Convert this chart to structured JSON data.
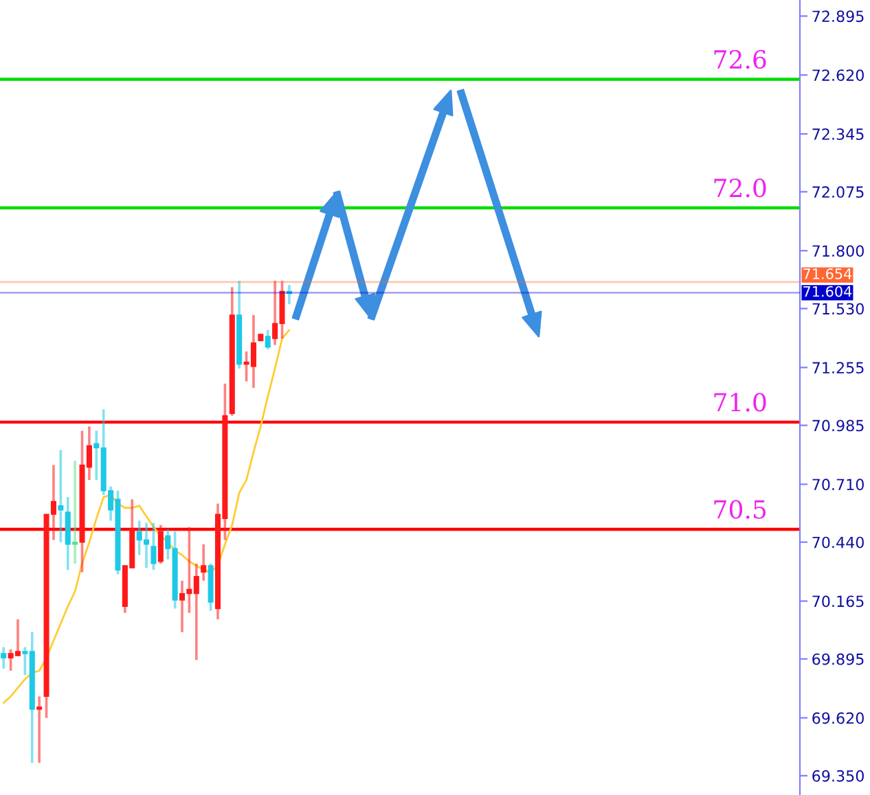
{
  "chart_data": {
    "type": "candlestick",
    "categories": [
      null,
      null,
      null,
      null,
      null,
      null,
      null,
      null,
      null,
      null,
      null,
      null,
      null,
      null,
      null,
      null,
      null,
      null,
      null,
      null,
      null,
      null,
      null,
      null,
      null,
      null,
      null,
      null,
      null,
      null,
      null,
      null,
      null,
      null,
      null,
      null,
      null,
      null,
      null,
      null,
      null,
      null,
      null,
      null,
      null,
      null,
      null,
      null,
      null,
      null,
      null,
      null,
      null,
      null,
      null,
      null,
      null,
      null,
      null,
      null,
      null,
      null,
      null,
      null,
      null,
      null,
      null,
      null,
      null,
      null,
      null,
      null,
      null,
      null,
      null,
      null,
      null,
      null,
      null,
      null,
      null,
      null,
      null,
      null,
      null,
      null,
      null,
      null,
      null,
      null,
      null,
      null,
      null,
      null,
      null,
      null,
      null,
      null,
      null,
      null,
      null,
      null,
      null,
      null,
      null,
      null,
      null,
      null,
      null,
      null,
      null,
      null
    ],
    "series": [
      {
        "ohlc": [
          [
            69.92,
            69.95,
            69.85,
            69.9
          ],
          [
            69.9,
            69.94,
            69.84,
            69.92
          ],
          [
            69.91,
            70.08,
            69.91,
            69.93
          ],
          [
            69.93,
            69.95,
            69.82,
            69.92
          ],
          [
            69.93,
            70.02,
            69.41,
            69.66
          ],
          [
            69.66,
            69.72,
            69.41,
            69.67
          ],
          [
            69.72,
            70.57,
            69.62,
            70.57
          ],
          [
            70.57,
            70.8,
            70.45,
            70.63
          ],
          [
            70.61,
            70.87,
            70.44,
            70.59
          ],
          [
            70.58,
            70.65,
            70.31,
            70.43
          ],
          [
            70.44,
            70.82,
            70.34,
            70.43
          ],
          [
            70.44,
            70.96,
            70.3,
            70.8
          ],
          [
            70.79,
            70.98,
            70.73,
            70.89
          ],
          [
            70.9,
            70.96,
            70.73,
            70.88
          ],
          [
            70.88,
            71.06,
            70.66,
            70.68
          ],
          [
            70.68,
            70.7,
            70.54,
            70.59
          ],
          [
            70.64,
            70.68,
            70.29,
            70.31
          ],
          [
            70.14,
            70.33,
            70.11,
            70.33
          ],
          [
            70.32,
            70.64,
            70.32,
            70.5
          ],
          [
            70.49,
            70.54,
            70.38,
            70.45
          ],
          [
            70.45,
            70.53,
            70.32,
            70.43
          ],
          [
            70.42,
            70.53,
            70.31,
            70.34
          ],
          [
            70.35,
            70.52,
            70.34,
            70.49
          ],
          [
            70.47,
            70.5,
            70.36,
            70.41
          ],
          [
            70.41,
            70.49,
            70.13,
            70.17
          ],
          [
            70.17,
            70.26,
            70.02,
            70.2
          ],
          [
            70.2,
            70.51,
            70.11,
            70.22
          ],
          [
            70.2,
            70.34,
            69.89,
            70.28
          ],
          [
            70.3,
            70.43,
            70.26,
            70.33
          ],
          [
            70.33,
            70.34,
            70.12,
            70.16
          ],
          [
            70.13,
            70.62,
            70.08,
            70.57
          ],
          [
            70.55,
            71.18,
            70.45,
            71.03
          ],
          [
            71.04,
            71.63,
            71.03,
            71.5
          ],
          [
            71.5,
            71.66,
            71.25,
            71.27
          ],
          [
            71.27,
            71.33,
            71.19,
            71.28
          ],
          [
            71.26,
            71.5,
            71.16,
            71.37
          ],
          [
            71.38,
            71.41,
            71.38,
            71.41
          ],
          [
            71.4,
            71.43,
            71.34,
            71.35
          ],
          [
            71.39,
            71.66,
            71.36,
            71.46
          ],
          [
            71.46,
            71.66,
            71.39,
            71.61
          ],
          [
            71.61,
            71.64,
            71.55,
            71.6
          ],
          null,
          null,
          null,
          null,
          null,
          null,
          null,
          null,
          null,
          null,
          null,
          null,
          null,
          null,
          null,
          null,
          null,
          null,
          null,
          null,
          null,
          null,
          null,
          null,
          null,
          null,
          null,
          null,
          null,
          null,
          null,
          null,
          null,
          null,
          null,
          null,
          null,
          null,
          null,
          null,
          null,
          null,
          null,
          null,
          null,
          null,
          null,
          null,
          null,
          null,
          null,
          null,
          null,
          null,
          null,
          null,
          null,
          null,
          null,
          null,
          null,
          null,
          null,
          null,
          null,
          null,
          null,
          null,
          null,
          null,
          null
        ],
        "colors": [
          "#1ec8e6",
          "#ff1a1a",
          "#ff1a1a",
          "#1ec8e6",
          "#1ec8e6",
          "#ff1a1a",
          "#ff1a1a",
          "#ff1a1a",
          "#1ec8e6",
          "#1ec8e6",
          "#5ee08a",
          "#ff1a1a",
          "#ff1a1a",
          "#1ec8e6",
          "#1ec8e6",
          "#1ec8e6",
          "#1ec8e6",
          "#ff1a1a",
          "#ff1a1a",
          "#1ec8e6",
          "#1ec8e6",
          "#1ec8e6",
          "#ff1a1a",
          "#1ec8e6",
          "#1ec8e6",
          "#ff1a1a",
          "#ff1a1a",
          "#ff1a1a",
          "#ff1a1a",
          "#1ec8e6",
          "#ff1a1a",
          "#ff1a1a",
          "#ff1a1a",
          "#1ec8e6",
          "#ff1a1a",
          "#ff1a1a",
          "#ff1a1a",
          "#1ec8e6",
          "#ff1a1a",
          "#ff1a1a",
          "#1ec8e6",
          null,
          null,
          null,
          null,
          null,
          null,
          null,
          null,
          null,
          null,
          null,
          null,
          null,
          null,
          null,
          null,
          null,
          null,
          null,
          null,
          null,
          null,
          null,
          null,
          null,
          null,
          null,
          null,
          null,
          null,
          null,
          null,
          null,
          null,
          null,
          null,
          null,
          null,
          null,
          null,
          null,
          null,
          null,
          null,
          null,
          null,
          null,
          null,
          null,
          null,
          null,
          null,
          null,
          null,
          null,
          null,
          null,
          null,
          null,
          null,
          null,
          null,
          null,
          null,
          null,
          null,
          null,
          null,
          null,
          null,
          null
        ]
      },
      {
        "type": "line",
        "color": "#ffcc33",
        "values": [
          69.69,
          69.72,
          69.76,
          69.8,
          69.83,
          69.84,
          69.9,
          69.98,
          70.06,
          70.14,
          70.21,
          70.34,
          70.44,
          70.55,
          70.65,
          70.66,
          70.62,
          70.6,
          70.6,
          70.61,
          70.56,
          70.51,
          70.47,
          70.44,
          70.4,
          70.38,
          70.35,
          70.33,
          70.31,
          70.3,
          70.33,
          70.43,
          70.52,
          70.67,
          70.73,
          70.86,
          70.98,
          71.12,
          71.25,
          71.39,
          71.43,
          null,
          null,
          null,
          null,
          null,
          null,
          null,
          null,
          null,
          null,
          null,
          null,
          null,
          null,
          null,
          null,
          null,
          null,
          null,
          null,
          null,
          null,
          null,
          null,
          null,
          null,
          null,
          null,
          null,
          null,
          null,
          null,
          null,
          null,
          null,
          null,
          null,
          null,
          null,
          null,
          null,
          null,
          null,
          null,
          null,
          null,
          null,
          null,
          null,
          null,
          null,
          null,
          null,
          null,
          null,
          null,
          null,
          null,
          null,
          null,
          null,
          null,
          null,
          null,
          null,
          null,
          null,
          null,
          null,
          null,
          null
        ]
      }
    ],
    "ylim": [
      69.26,
      72.97
    ],
    "yticks": [
      {
        "value": 69.35,
        "label": "69.350"
      },
      {
        "value": 69.62,
        "label": "69.620"
      },
      69.895,
      70.165,
      {
        "value": 70.44,
        "label": "70.440"
      },
      {
        "value": 70.71,
        "label": "70.710"
      },
      70.985,
      71.255,
      {
        "value": 71.53,
        "label": "71.530"
      },
      {
        "value": 71.8,
        "label": "71.800"
      },
      72.075,
      72.345,
      {
        "value": 72.62,
        "label": "72.620"
      },
      72.895
    ],
    "y2lim": [
      69.26,
      72.97
    ],
    "ref_lines": [
      {
        "axis": "y",
        "value": 72.6,
        "label": "72.6",
        "color": "#00dd00"
      },
      {
        "axis": "y",
        "value": 72.0,
        "label": "72.0",
        "color": "#00dd00"
      },
      {
        "axis": "y",
        "value": 71.0,
        "label": "71.0",
        "color": "#ff0000"
      },
      {
        "axis": "y",
        "value": 70.5,
        "label": "70.5",
        "color": "#ff0000"
      },
      {
        "axis": "y2",
        "value": 71.654,
        "label": "71.654",
        "color": "#ff6633"
      },
      {
        "axis": "y2",
        "value": 71.604,
        "label": "71.604",
        "color": "#0000cc"
      }
    ],
    "grid": false,
    "legend": false
  }
}
